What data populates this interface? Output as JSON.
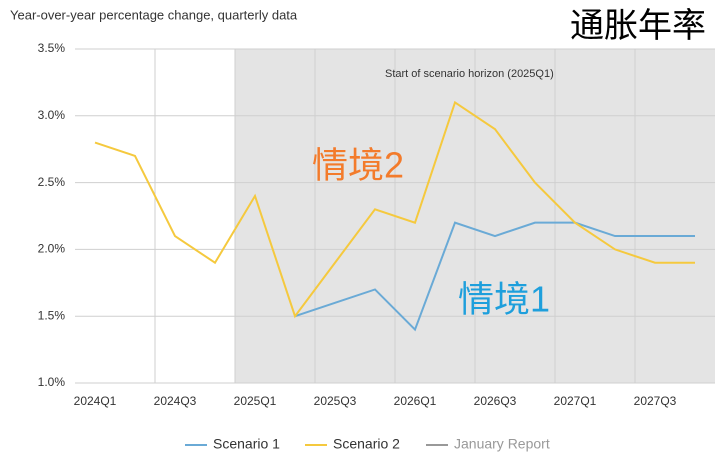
{
  "chart_data": {
    "type": "line",
    "title": "通胀年率",
    "subtitle": "Year-over-year percentage change, quarterly data",
    "annotations": [
      {
        "text": "Start of scenario horizon (2025Q1)"
      },
      {
        "text": "情境2",
        "color": "#f37b2b"
      },
      {
        "text": "情境1",
        "color": "#1e9fdc"
      }
    ],
    "categories": [
      "2024Q1",
      null,
      "2024Q3",
      null,
      "2025Q1",
      null,
      "2025Q3",
      null,
      "2026Q1",
      null,
      "2026Q3",
      null,
      "2027Q1",
      null,
      "2027Q3",
      null
    ],
    "series": [
      {
        "name": "Scenario 1",
        "color": "#6aaad6",
        "values": [
          null,
          null,
          null,
          null,
          null,
          1.5,
          1.6,
          1.7,
          1.4,
          2.2,
          2.1,
          2.2,
          2.2,
          2.1,
          2.1,
          2.1
        ]
      },
      {
        "name": "Scenario 2",
        "color": "#f5c93e",
        "values": [
          2.8,
          2.7,
          2.1,
          1.9,
          2.4,
          1.5,
          1.9,
          2.3,
          2.2,
          3.1,
          2.9,
          2.5,
          2.2,
          2.0,
          1.9,
          1.9
        ]
      },
      {
        "name": "January Report",
        "color": "#999999",
        "values": [
          null,
          null,
          null,
          null,
          null,
          null,
          null,
          null,
          null,
          null,
          null,
          null,
          null,
          null,
          null,
          null
        ]
      }
    ],
    "ylim": [
      1.0,
      3.5
    ],
    "yticks": [
      {
        "value": 1.0,
        "label": "1.0%"
      },
      {
        "value": 1.5,
        "label": "1.5%"
      },
      {
        "value": 2.0,
        "label": "2.0%"
      },
      {
        "value": 2.5,
        "label": "2.5%"
      },
      {
        "value": 3.0,
        "label": "3.0%"
      },
      {
        "value": 3.5,
        "label": "3.5%"
      }
    ],
    "grid": true
  }
}
